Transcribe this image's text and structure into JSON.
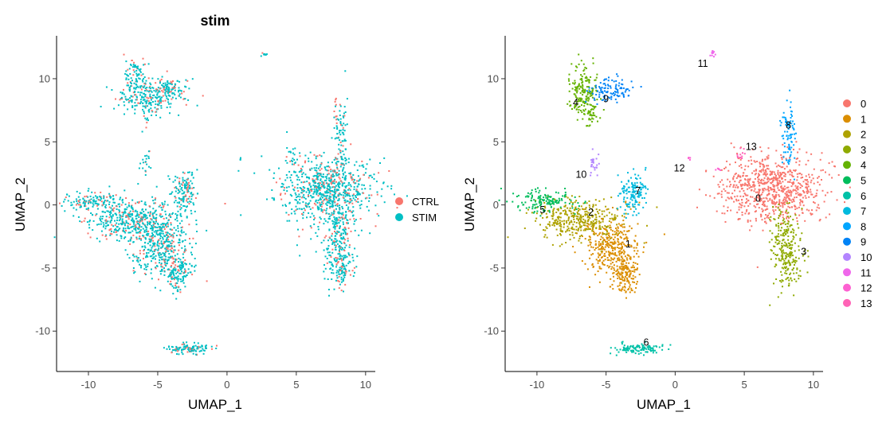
{
  "chart_data": [
    {
      "type": "scatter",
      "title": "stim",
      "xlabel": "UMAP_1",
      "ylabel": "UMAP_2",
      "xlim": [
        -12.3,
        10.7
      ],
      "ylim": [
        -13.2,
        13.4
      ],
      "xticks": [
        -10,
        -5,
        0,
        5,
        10
      ],
      "yticks": [
        -10,
        -5,
        0,
        5,
        10
      ],
      "legend": "right",
      "series": [
        {
          "name": "CTRL",
          "color": "#F8766D"
        },
        {
          "name": "STIM",
          "color": "#00BFC4"
        }
      ],
      "regions": [
        {
          "x": 5.5,
          "y": -4.5,
          "sx": 0.8,
          "sy": 0.5,
          "n": 1
        },
        {
          "x": 7.1,
          "y": 1.2,
          "sx": 1.8,
          "sy": 1.3,
          "n": 760
        },
        {
          "x": 8.0,
          "y": -2.5,
          "sx": 0.5,
          "sy": 1.6,
          "n": 190
        },
        {
          "x": 8.3,
          "y": -4.8,
          "sx": 0.5,
          "sy": 0.8,
          "n": 110
        },
        {
          "x": 8.2,
          "y": 5.5,
          "sx": 0.25,
          "sy": 1.5,
          "n": 90
        },
        {
          "x": 4.8,
          "y": 3.8,
          "sx": 0.3,
          "sy": 0.4,
          "n": 20
        },
        {
          "x": -5.5,
          "y": 8.6,
          "sx": 1.2,
          "sy": 0.7,
          "n": 240
        },
        {
          "x": -6.6,
          "y": 10.2,
          "sx": 0.4,
          "sy": 0.8,
          "n": 80
        },
        {
          "x": -4.2,
          "y": 9.2,
          "sx": 0.5,
          "sy": 0.4,
          "n": 70
        },
        {
          "x": -5.8,
          "y": 7.2,
          "sx": 0.4,
          "sy": 0.5,
          "n": 25
        },
        {
          "x": -9.6,
          "y": 0.3,
          "sx": 1.1,
          "sy": 0.4,
          "n": 130
        },
        {
          "x": -7.0,
          "y": -1.2,
          "sx": 1.6,
          "sy": 0.8,
          "n": 380
        },
        {
          "x": -4.8,
          "y": -3.0,
          "sx": 1.1,
          "sy": 1.3,
          "n": 420
        },
        {
          "x": -3.6,
          "y": -5.4,
          "sx": 0.5,
          "sy": 0.7,
          "n": 140
        },
        {
          "x": -3.1,
          "y": 1.0,
          "sx": 0.5,
          "sy": 0.8,
          "n": 140
        },
        {
          "x": -5.9,
          "y": 3.3,
          "sx": 0.2,
          "sy": 0.5,
          "n": 20
        },
        {
          "x": -2.7,
          "y": -11.4,
          "sx": 0.9,
          "sy": 0.2,
          "n": 110
        },
        {
          "x": 2.7,
          "y": 12.0,
          "sx": 0.1,
          "sy": 0.1,
          "n": 8
        },
        {
          "x": 1.0,
          "y": 3.7,
          "sx": 0.05,
          "sy": 0.1,
          "n": 3
        }
      ],
      "stim_fraction": 0.78
    },
    {
      "type": "scatter",
      "title": "",
      "xlabel": "UMAP_1",
      "ylabel": "UMAP_2",
      "xlim": [
        -12.3,
        10.7
      ],
      "ylim": [
        -13.2,
        13.4
      ],
      "xticks": [
        -10,
        -5,
        0,
        5,
        10
      ],
      "yticks": [
        -10,
        -5,
        0,
        5,
        10
      ],
      "legend": "right",
      "series": [
        {
          "name": "0",
          "color": "#F8766D",
          "label_pos": [
            6.0,
            0.5
          ],
          "regions": [
            {
              "x": 7.0,
              "y": 1.3,
              "sx": 1.8,
              "sy": 1.3,
              "n": 760
            }
          ]
        },
        {
          "name": "1",
          "color": "#DB8E00",
          "label_pos": [
            -3.4,
            -3.1
          ],
          "regions": [
            {
              "x": -4.6,
              "y": -3.3,
              "sx": 1.0,
              "sy": 1.2,
              "n": 330
            },
            {
              "x": -3.6,
              "y": -5.4,
              "sx": 0.5,
              "sy": 0.7,
              "n": 150
            }
          ]
        },
        {
          "name": "2",
          "color": "#AEA200",
          "label_pos": [
            -6.1,
            -0.6
          ],
          "regions": [
            {
              "x": -7.0,
              "y": -1.2,
              "sx": 1.5,
              "sy": 0.8,
              "n": 360
            }
          ]
        },
        {
          "name": "3",
          "color": "#8FAA00",
          "label_pos": [
            9.3,
            -3.7
          ],
          "regions": [
            {
              "x": 8.1,
              "y": -3.5,
              "sx": 0.55,
              "sy": 1.6,
              "n": 260
            }
          ]
        },
        {
          "name": "4",
          "color": "#64B200",
          "label_pos": [
            -7.2,
            8.1
          ],
          "regions": [
            {
              "x": -6.6,
              "y": 8.9,
              "sx": 0.5,
              "sy": 1.0,
              "n": 190
            },
            {
              "x": -6.1,
              "y": 7.2,
              "sx": 0.3,
              "sy": 0.5,
              "n": 25
            }
          ]
        },
        {
          "name": "5",
          "color": "#00BD5C",
          "label_pos": [
            -9.6,
            -0.4
          ],
          "regions": [
            {
              "x": -9.6,
              "y": 0.3,
              "sx": 1.1,
              "sy": 0.4,
              "n": 140
            }
          ]
        },
        {
          "name": "6",
          "color": "#00C1A7",
          "label_pos": [
            -2.1,
            -10.9
          ],
          "regions": [
            {
              "x": -2.7,
              "y": -11.4,
              "sx": 0.9,
              "sy": 0.2,
              "n": 110
            }
          ]
        },
        {
          "name": "7",
          "color": "#00BADE",
          "label_pos": [
            -2.7,
            1.1
          ],
          "regions": [
            {
              "x": -3.1,
              "y": 1.0,
              "sx": 0.5,
              "sy": 0.8,
              "n": 140
            }
          ]
        },
        {
          "name": "8",
          "color": "#00A6FF",
          "label_pos": [
            8.2,
            6.3
          ],
          "regions": [
            {
              "x": 8.2,
              "y": 5.6,
              "sx": 0.25,
              "sy": 1.4,
              "n": 90
            }
          ]
        },
        {
          "name": "9",
          "color": "#0083F6",
          "label_pos": [
            -5.0,
            8.4
          ],
          "regions": [
            {
              "x": -4.6,
              "y": 9.1,
              "sx": 0.8,
              "sy": 0.45,
              "n": 110
            }
          ]
        },
        {
          "name": "10",
          "color": "#B385FF",
          "label_pos": [
            -6.8,
            2.4
          ],
          "regions": [
            {
              "x": -5.9,
              "y": 3.3,
              "sx": 0.2,
              "sy": 0.5,
              "n": 25
            }
          ]
        },
        {
          "name": "11",
          "color": "#EF67EB",
          "label_pos": [
            2.0,
            11.2
          ],
          "regions": [
            {
              "x": 2.7,
              "y": 12.0,
              "sx": 0.15,
              "sy": 0.12,
              "n": 10
            }
          ]
        },
        {
          "name": "12",
          "color": "#FD61D1",
          "label_pos": [
            0.3,
            2.9
          ],
          "regions": [
            {
              "x": 1.0,
              "y": 3.7,
              "sx": 0.05,
              "sy": 0.1,
              "n": 4
            },
            {
              "x": 3.1,
              "y": 2.8,
              "sx": 0.2,
              "sy": 0.1,
              "n": 5
            }
          ]
        },
        {
          "name": "13",
          "color": "#FF63B6",
          "label_pos": [
            5.5,
            4.6
          ],
          "regions": [
            {
              "x": 4.8,
              "y": 3.8,
              "sx": 0.2,
              "sy": 0.3,
              "n": 12
            }
          ]
        }
      ]
    }
  ]
}
